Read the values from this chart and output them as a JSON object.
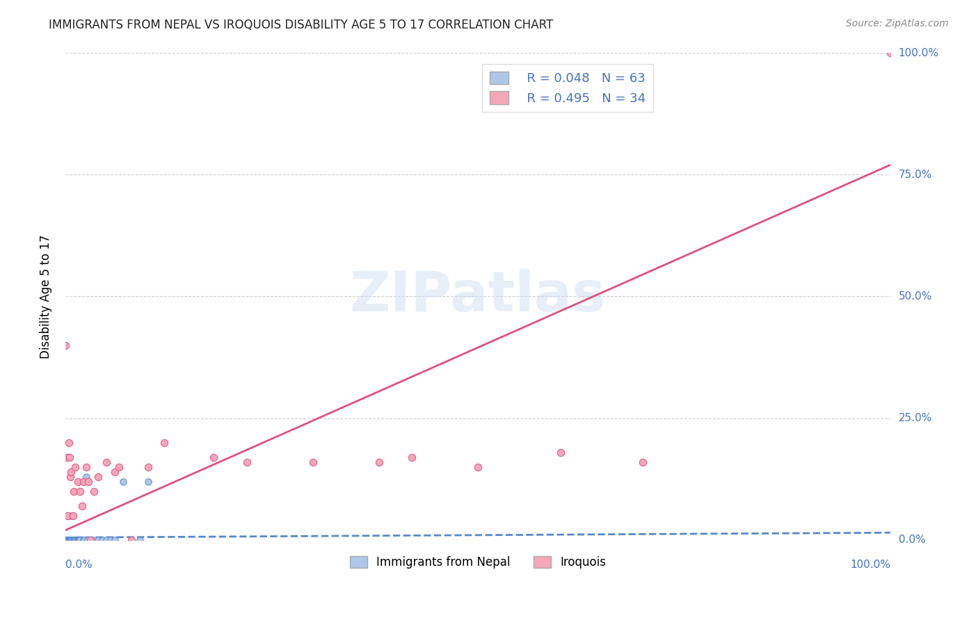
{
  "title": "IMMIGRANTS FROM NEPAL VS IROQUOIS DISABILITY AGE 5 TO 17 CORRELATION CHART",
  "source": "Source: ZipAtlas.com",
  "ylabel": "Disability Age 5 to 17",
  "legend_label1": "Immigrants from Nepal",
  "legend_label2": "Iroquois",
  "R1": 0.048,
  "N1": 63,
  "R2": 0.495,
  "N2": 34,
  "color_nepal": "#aec6e8",
  "color_iroquois": "#f4a7b9",
  "color_nepal_line": "#5588cc",
  "color_iroquois_line": "#e05080",
  "watermark": "ZIPatlas",
  "nepal_x": [
    0.0,
    0.0,
    0.0,
    0.0,
    0.0,
    0.0,
    0.0,
    0.0,
    0.0,
    0.0,
    0.0,
    0.0,
    0.0,
    0.0,
    0.0,
    0.0,
    0.001,
    0.001,
    0.001,
    0.001,
    0.002,
    0.002,
    0.002,
    0.003,
    0.003,
    0.003,
    0.004,
    0.004,
    0.005,
    0.005,
    0.006,
    0.006,
    0.007,
    0.007,
    0.008,
    0.008,
    0.009,
    0.01,
    0.01,
    0.011,
    0.012,
    0.013,
    0.014,
    0.015,
    0.016,
    0.017,
    0.018,
    0.02,
    0.022,
    0.023,
    0.025,
    0.027,
    0.03,
    0.035,
    0.04,
    0.045,
    0.05,
    0.055,
    0.06,
    0.07,
    0.08,
    0.09,
    0.1
  ],
  "nepal_y": [
    0.0,
    0.0,
    0.0,
    0.0,
    0.0,
    0.0,
    0.0,
    0.0,
    0.0,
    0.0,
    0.0,
    0.0,
    0.0,
    0.0,
    0.0,
    0.0,
    0.0,
    0.0,
    0.0,
    0.0,
    0.0,
    0.0,
    0.0,
    0.0,
    0.0,
    0.0,
    0.0,
    0.0,
    0.0,
    0.05,
    0.0,
    0.0,
    0.0,
    0.0,
    0.0,
    0.05,
    0.0,
    0.0,
    0.0,
    0.0,
    0.0,
    0.0,
    0.0,
    0.0,
    0.0,
    0.0,
    0.0,
    0.07,
    0.0,
    0.0,
    0.13,
    0.0,
    0.0,
    0.0,
    0.0,
    0.0,
    0.0,
    0.0,
    0.0,
    0.12,
    0.0,
    0.0,
    0.12
  ],
  "iroquois_x": [
    0.0,
    0.002,
    0.003,
    0.004,
    0.005,
    0.006,
    0.007,
    0.009,
    0.01,
    0.012,
    0.015,
    0.018,
    0.02,
    0.022,
    0.025,
    0.028,
    0.03,
    0.035,
    0.04,
    0.05,
    0.06,
    0.065,
    0.08,
    0.1,
    0.12,
    0.18,
    0.22,
    0.3,
    0.38,
    0.42,
    0.5,
    0.6,
    0.7,
    1.0
  ],
  "iroquois_y": [
    0.4,
    0.17,
    0.05,
    0.2,
    0.17,
    0.13,
    0.14,
    0.05,
    0.1,
    0.15,
    0.12,
    0.1,
    0.07,
    0.12,
    0.15,
    0.12,
    0.0,
    0.1,
    0.13,
    0.16,
    0.14,
    0.15,
    0.0,
    0.15,
    0.2,
    0.17,
    0.16,
    0.16,
    0.16,
    0.17,
    0.15,
    0.18,
    0.16,
    1.0
  ],
  "xlim": [
    0.0,
    1.0
  ],
  "ylim": [
    0.0,
    1.0
  ],
  "nepal_line_x": [
    0.0,
    1.0
  ],
  "nepal_line_y": [
    0.005,
    0.015
  ],
  "iroquois_line_x": [
    0.0,
    1.0
  ],
  "iroquois_line_y": [
    0.02,
    0.77
  ]
}
